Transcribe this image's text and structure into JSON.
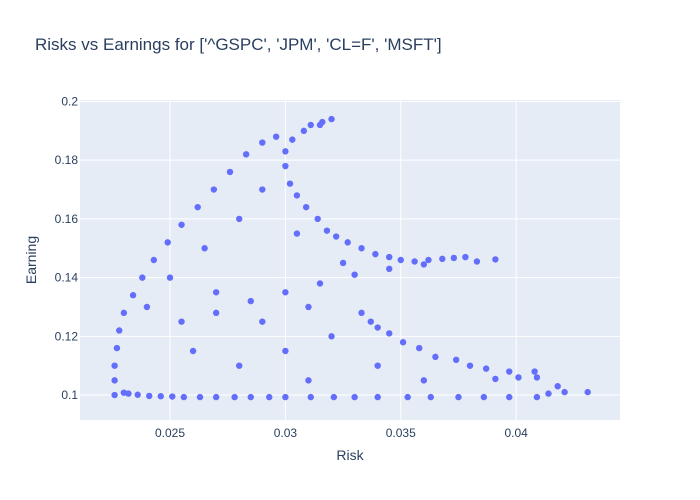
{
  "chart_data": {
    "type": "scatter",
    "title": "Risks vs Earnings for ['^GSPC', 'JPM', 'CL=F', 'MSFT']",
    "xlabel": "Risk",
    "ylabel": "Earning",
    "xlim": [
      0.0211,
      0.0445
    ],
    "ylim": [
      0.0915,
      0.2005
    ],
    "xticks": [
      0.025,
      0.03,
      0.035,
      0.04
    ],
    "xtick_labels": [
      "0.025",
      "0.03",
      "0.035",
      "0.04"
    ],
    "yticks": [
      0.1,
      0.12,
      0.14,
      0.16,
      0.18,
      0.2
    ],
    "ytick_labels": [
      "0.1",
      "0.12",
      "0.14",
      "0.16",
      "0.18",
      "0.2"
    ],
    "grid": true,
    "colors": {
      "marker": "#636efa",
      "plot_bg": "#e5ecf6",
      "grid": "#ffffff",
      "text": "#2a3f5f"
    },
    "series": [
      {
        "points": [
          [
            0.0226,
            0.1
          ],
          [
            0.023,
            0.1008
          ],
          [
            0.0232,
            0.1005
          ],
          [
            0.0236,
            0.1001
          ],
          [
            0.0241,
            0.0997
          ],
          [
            0.0246,
            0.0996
          ],
          [
            0.0251,
            0.0995
          ],
          [
            0.0256,
            0.0993
          ],
          [
            0.0263,
            0.0993
          ],
          [
            0.027,
            0.0993
          ],
          [
            0.0278,
            0.0993
          ],
          [
            0.0285,
            0.0993
          ],
          [
            0.0293,
            0.0993
          ],
          [
            0.03,
            0.0993
          ],
          [
            0.0311,
            0.0993
          ],
          [
            0.0321,
            0.0993
          ],
          [
            0.033,
            0.0993
          ],
          [
            0.034,
            0.0993
          ],
          [
            0.0353,
            0.0993
          ],
          [
            0.0363,
            0.0993
          ],
          [
            0.0375,
            0.0993
          ],
          [
            0.0386,
            0.0993
          ],
          [
            0.0397,
            0.0993
          ],
          [
            0.0409,
            0.0993
          ],
          [
            0.0414,
            0.1005
          ],
          [
            0.0421,
            0.101
          ],
          [
            0.0431,
            0.101
          ],
          [
            0.0418,
            0.103
          ],
          [
            0.0409,
            0.106
          ],
          [
            0.0408,
            0.108
          ],
          [
            0.0401,
            0.106
          ],
          [
            0.0397,
            0.108
          ],
          [
            0.0391,
            0.1055
          ],
          [
            0.0387,
            0.109
          ],
          [
            0.038,
            0.11
          ],
          [
            0.0374,
            0.112
          ],
          [
            0.0365,
            0.113
          ],
          [
            0.0358,
            0.116
          ],
          [
            0.0351,
            0.118
          ],
          [
            0.0345,
            0.121
          ],
          [
            0.034,
            0.123
          ],
          [
            0.0337,
            0.125
          ],
          [
            0.0333,
            0.128
          ],
          [
            0.0391,
            0.1462
          ],
          [
            0.0383,
            0.1455
          ],
          [
            0.0378,
            0.147
          ],
          [
            0.0373,
            0.1467
          ],
          [
            0.0368,
            0.1464
          ],
          [
            0.0362,
            0.146
          ],
          [
            0.0356,
            0.1455
          ],
          [
            0.035,
            0.146
          ],
          [
            0.0345,
            0.147
          ],
          [
            0.0339,
            0.148
          ],
          [
            0.0333,
            0.15
          ],
          [
            0.0327,
            0.152
          ],
          [
            0.0322,
            0.154
          ],
          [
            0.0318,
            0.156
          ],
          [
            0.0314,
            0.16
          ],
          [
            0.0309,
            0.164
          ],
          [
            0.0305,
            0.168
          ],
          [
            0.0302,
            0.172
          ],
          [
            0.03,
            0.178
          ],
          [
            0.03,
            0.183
          ],
          [
            0.0303,
            0.187
          ],
          [
            0.0308,
            0.19
          ],
          [
            0.0315,
            0.192
          ],
          [
            0.032,
            0.194
          ],
          [
            0.0316,
            0.193
          ],
          [
            0.0311,
            0.192
          ],
          [
            0.0296,
            0.188
          ],
          [
            0.029,
            0.186
          ],
          [
            0.0283,
            0.182
          ],
          [
            0.0276,
            0.176
          ],
          [
            0.0269,
            0.17
          ],
          [
            0.0262,
            0.164
          ],
          [
            0.0255,
            0.158
          ],
          [
            0.0249,
            0.152
          ],
          [
            0.0243,
            0.146
          ],
          [
            0.0238,
            0.14
          ],
          [
            0.0234,
            0.134
          ],
          [
            0.023,
            0.128
          ],
          [
            0.0228,
            0.122
          ],
          [
            0.0227,
            0.116
          ],
          [
            0.0226,
            0.11
          ],
          [
            0.0226,
            0.105
          ],
          [
            0.024,
            0.13
          ],
          [
            0.0255,
            0.125
          ],
          [
            0.027,
            0.128
          ],
          [
            0.0285,
            0.132
          ],
          [
            0.03,
            0.135
          ],
          [
            0.0315,
            0.138
          ],
          [
            0.033,
            0.141
          ],
          [
            0.0345,
            0.143
          ],
          [
            0.036,
            0.1445
          ],
          [
            0.025,
            0.14
          ],
          [
            0.0265,
            0.15
          ],
          [
            0.028,
            0.16
          ],
          [
            0.029,
            0.17
          ],
          [
            0.026,
            0.115
          ],
          [
            0.028,
            0.11
          ],
          [
            0.03,
            0.115
          ],
          [
            0.032,
            0.12
          ],
          [
            0.034,
            0.11
          ],
          [
            0.036,
            0.105
          ],
          [
            0.031,
            0.105
          ],
          [
            0.029,
            0.125
          ],
          [
            0.027,
            0.135
          ],
          [
            0.031,
            0.13
          ],
          [
            0.0325,
            0.145
          ],
          [
            0.0305,
            0.155
          ]
        ]
      }
    ]
  }
}
